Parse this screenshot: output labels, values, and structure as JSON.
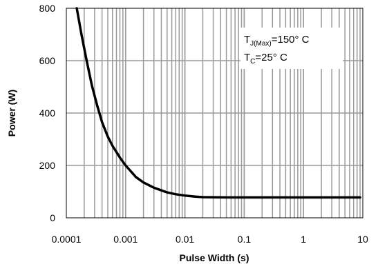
{
  "chart_data": {
    "type": "line",
    "title": "",
    "xlabel": "Pulse Width (s)",
    "ylabel": "Power (W)",
    "x_scale": "log",
    "xlim": [
      0.0001,
      10
    ],
    "ylim": [
      0,
      800
    ],
    "x_ticks": [
      "0.0001",
      "0.001",
      "0.01",
      "0.1",
      "1",
      "10"
    ],
    "y_ticks": [
      "0",
      "200",
      "400",
      "600",
      "800"
    ],
    "grid": true,
    "annotation": {
      "line1_main": "T",
      "line1_sub": "J(Max)",
      "line1_rest": "=150° C",
      "line2_main": "T",
      "line2_sub": "C",
      "line2_rest": "=25° C"
    },
    "series": [
      {
        "x": [
          0.00015,
          0.00018,
          0.00022,
          0.00027,
          0.00033,
          0.0004,
          0.0005,
          0.0006,
          0.0008,
          0.001,
          0.0015,
          0.002,
          0.003,
          0.005,
          0.007,
          0.01,
          0.015,
          0.02,
          0.05,
          0.1,
          0.5,
          1,
          5,
          9
        ],
        "values": [
          800,
          700,
          600,
          505,
          430,
          365,
          310,
          275,
          230,
          200,
          155,
          135,
          115,
          97,
          90,
          85,
          81,
          79,
          78,
          78,
          78,
          78,
          78,
          78
        ]
      }
    ]
  }
}
